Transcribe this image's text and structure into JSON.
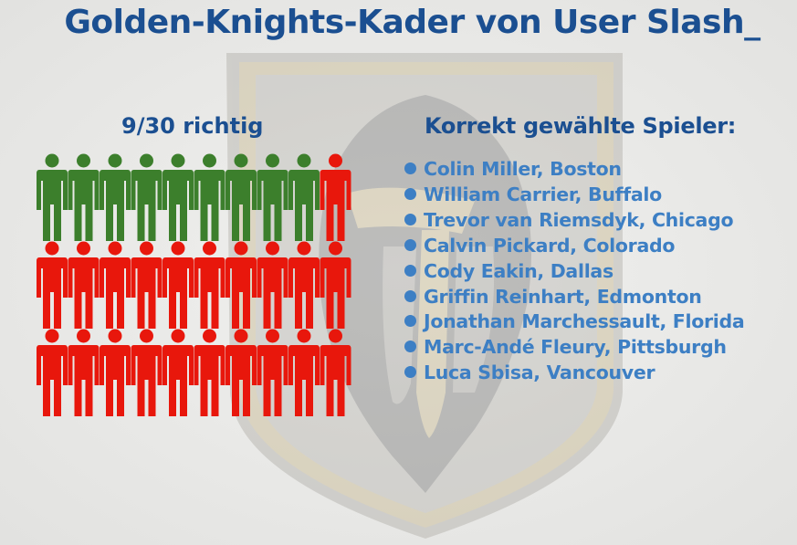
{
  "title": "Golden-Knights-Kader von User Slash_",
  "score": {
    "label": "9/30 richtig",
    "correct": 9,
    "total": 30,
    "rows": 3,
    "per_row": 10
  },
  "colors": {
    "title": "#1b4f91",
    "list_text": "#3d7fc4",
    "correct": "#3c7f2c",
    "incorrect": "#e8170c",
    "background": "#e9e9e7"
  },
  "list_heading": "Korrekt gewählte Spieler:",
  "players": [
    "Colin Miller, Boston",
    "William Carrier, Buffalo",
    "Trevor van Riemsdyk, Chicago",
    "Calvin Pickard, Colorado",
    "Cody Eakin, Dallas",
    "Griffin Reinhart, Edmonton",
    "Jonathan Marchessault, Florida",
    "Marc-Andé Fleury, Pittsburgh",
    "Luca Sbisa, Vancouver"
  ],
  "icons": {
    "background_logo": "golden-knights-helmet-logo",
    "figure": "person-icon",
    "bullet": "bullet-dot-icon"
  }
}
